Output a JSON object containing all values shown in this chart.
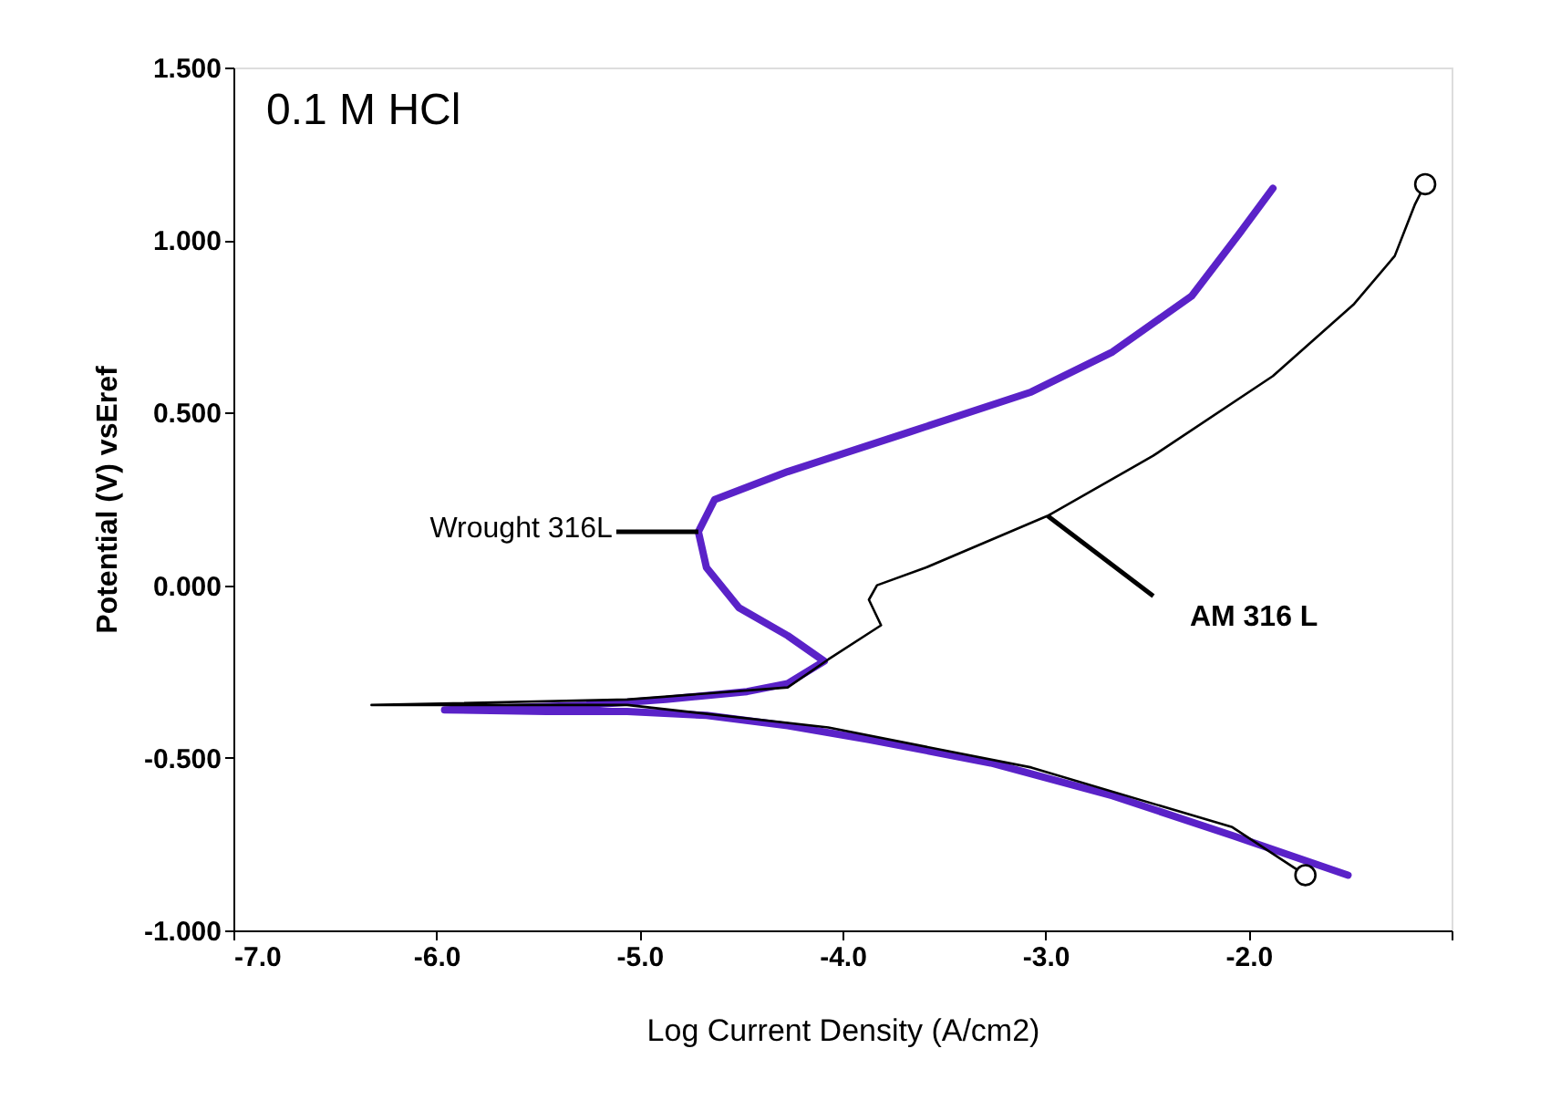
{
  "chart_data": {
    "type": "line",
    "xlabel": "Log Current Density (A/cm2)",
    "ylabel": "Potential (V) vsEref",
    "xlim": [
      -7,
      -1
    ],
    "ylim": [
      -1,
      1.5
    ],
    "xticks": [
      {
        "value": -7,
        "label": "-7.0"
      },
      {
        "value": -6,
        "label": "-6.0"
      },
      {
        "value": -5,
        "label": "-5.0"
      },
      {
        "value": -4,
        "label": "-4.0"
      },
      {
        "value": -3,
        "label": "-3.0"
      },
      {
        "value": -2,
        "label": "-2.0"
      },
      {
        "value": -1,
        "label": null
      }
    ],
    "yticks": [
      {
        "value": -1,
        "label": "-1.000"
      },
      {
        "value": -0.5,
        "label": "-0.500"
      },
      {
        "value": 0,
        "label": "0.000"
      },
      {
        "value": 0.5,
        "label": "0.500"
      },
      {
        "value": 1,
        "label": "1.000"
      },
      {
        "value": 1.5,
        "label": "1.500"
      }
    ],
    "grid": false,
    "line_style": "solid",
    "series": [
      {
        "color": "#5a22c8",
        "x": [
          -1.51,
          -2.08,
          -2.67,
          -3.27,
          -3.87,
          -4.27,
          -4.67,
          -5.06,
          -5.46,
          -5.96,
          -5.26,
          -4.87,
          -4.47,
          -4.27,
          -4.09,
          -4.27,
          -4.51,
          -4.67,
          -4.71,
          -4.63,
          -4.27,
          -3.67,
          -3.07,
          -2.67,
          -2.28,
          -2.04,
          -1.88
        ],
        "values": [
          -0.84,
          -0.725,
          -0.61,
          -0.515,
          -0.447,
          -0.407,
          -0.377,
          -0.366,
          -0.366,
          -0.361,
          -0.347,
          -0.331,
          -0.308,
          -0.285,
          -0.22,
          -0.146,
          -0.065,
          0.051,
          0.155,
          0.248,
          0.329,
          0.444,
          0.56,
          0.676,
          0.838,
          1.023,
          1.15
        ]
      },
      {
        "color": "#000000",
        "x": [
          -1.72,
          -2.08,
          -3.07,
          -4.07,
          -5.06,
          -6.32,
          -5.06,
          -4.27,
          -4.07,
          -3.81,
          -3.87,
          -3.83,
          -3.59,
          -2.99,
          -2.47,
          -1.88,
          -1.48,
          -1.28,
          -1.18,
          -1.13
        ],
        "values": [
          -0.84,
          -0.701,
          -0.528,
          -0.412,
          -0.347,
          -0.347,
          -0.331,
          -0.296,
          -0.215,
          -0.116,
          -0.042,
          0.0,
          0.051,
          0.201,
          0.375,
          0.606,
          0.815,
          0.954,
          1.104,
          1.162
        ]
      },
      {
        "type": "scatter",
        "marker": "circle",
        "color": "#000000",
        "x": [
          -1.72,
          -1.13
        ],
        "values": [
          -0.84,
          1.162
        ]
      }
    ],
    "annotations": [
      "0.1 M HCl",
      {
        "text": "Wrought 316L",
        "x": -4.71,
        "y": 0.155
      },
      {
        "text": "AM 316 L",
        "x": -2.99,
        "y": 0.201
      }
    ]
  }
}
